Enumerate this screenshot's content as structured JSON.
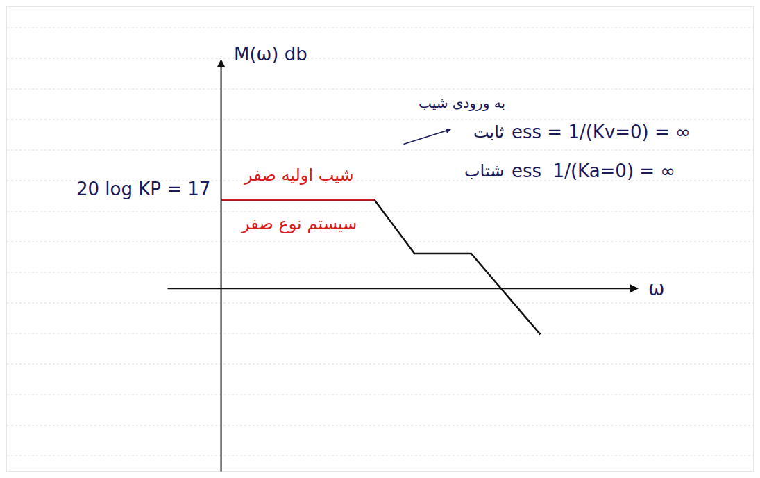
{
  "chart_data": {
    "type": "line",
    "xlabel": "ω",
    "ylabel": "M(ω) db",
    "x": [
      0,
      22.2,
      28,
      36.2,
      46.2
    ],
    "values": [
      17,
      17,
      6.7,
      6.7,
      -8.8
    ],
    "color": "#111111",
    "xlim": [
      -31,
      77
    ],
    "ylim": [
      -35,
      54
    ],
    "xticks": [],
    "yticks": [],
    "tick_labels": false,
    "grid": false,
    "annotations": [
      "20 log KP = 17",
      "شیب اولیه صفر",
      "سیستم نوع صفر",
      "به ورودی شیب",
      "ثابت",
      "ess = 1/(Kv=0) = ∞",
      "شتاب",
      "ess  1/(Ka=0) = ∞"
    ]
  }
}
